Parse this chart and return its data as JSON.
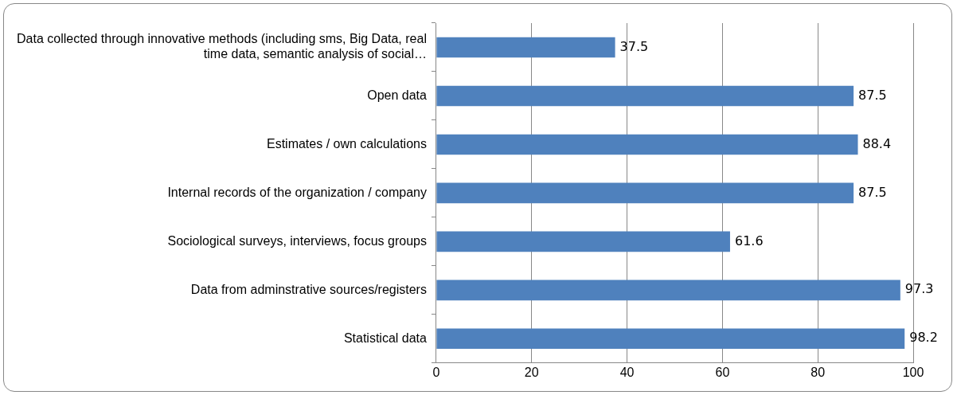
{
  "chart_data": {
    "type": "bar",
    "orientation": "horizontal",
    "categories": [
      "Data collected through innovative methods (including sms, Big Data, real time data, semantic analysis of social…",
      "Open data",
      "Estimates / own calculations",
      "Internal records of the organization / company",
      "Sociological surveys, interviews, focus groups",
      "Data from adminstrative sources/registers",
      "Statistical data"
    ],
    "values": [
      37.5,
      87.5,
      88.4,
      87.5,
      61.6,
      97.3,
      98.2
    ],
    "color": "#4f81bd",
    "xlim": [
      0,
      100
    ],
    "xticks": [
      0,
      20,
      40,
      60,
      80,
      100
    ],
    "grid": "x",
    "data_labels": true,
    "legend": false
  }
}
